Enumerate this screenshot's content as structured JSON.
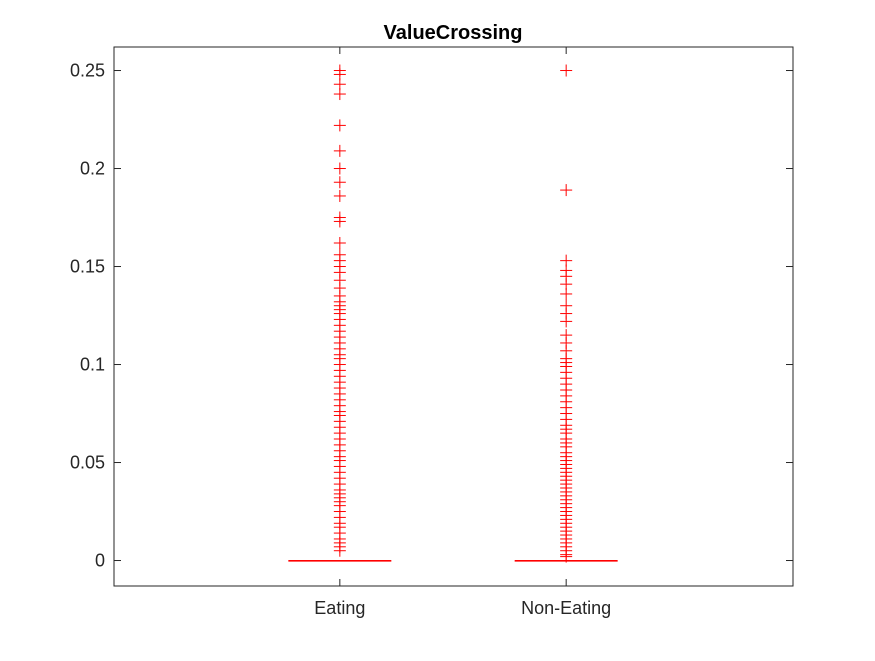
{
  "chart_data": {
    "type": "boxplot",
    "title": "ValueCrossing",
    "xlabel": "",
    "ylabel": "",
    "ylim": [
      -0.013,
      0.262
    ],
    "yticks": [
      0,
      0.05,
      0.1,
      0.15,
      0.2,
      0.25
    ],
    "ytick_labels": [
      "0",
      "0.05",
      "0.1",
      "0.15",
      "0.2",
      "0.25"
    ],
    "categories": [
      "Eating",
      "Non-Eating"
    ],
    "grid": false,
    "legend": "none",
    "box_color": "#ff0000",
    "outlier_color": "#ff0000",
    "series": [
      {
        "category": "Eating",
        "median": 0,
        "q1": 0,
        "q3": 0,
        "whisker_low": 0,
        "whisker_high": 0,
        "outliers": [
          0.25,
          0.248,
          0.243,
          0.238,
          0.222,
          0.209,
          0.2,
          0.193,
          0.186,
          0.175,
          0.173,
          0.162,
          0.156,
          0.153,
          0.15,
          0.147,
          0.143,
          0.139,
          0.135,
          0.132,
          0.13,
          0.128,
          0.126,
          0.123,
          0.12,
          0.117,
          0.114,
          0.111,
          0.108,
          0.105,
          0.103,
          0.1,
          0.097,
          0.094,
          0.091,
          0.088,
          0.085,
          0.082,
          0.079,
          0.076,
          0.074,
          0.071,
          0.068,
          0.065,
          0.062,
          0.059,
          0.056,
          0.053,
          0.051,
          0.048,
          0.045,
          0.042,
          0.039,
          0.036,
          0.034,
          0.032,
          0.03,
          0.028,
          0.025,
          0.022,
          0.019,
          0.017,
          0.014,
          0.011,
          0.009,
          0.007,
          0.005
        ]
      },
      {
        "category": "Non-Eating",
        "median": 0,
        "q1": 0,
        "q3": 0,
        "whisker_low": 0,
        "whisker_high": 0,
        "outliers": [
          0.25,
          0.189,
          0.153,
          0.148,
          0.145,
          0.141,
          0.136,
          0.13,
          0.126,
          0.122,
          0.115,
          0.111,
          0.107,
          0.103,
          0.101,
          0.099,
          0.096,
          0.093,
          0.09,
          0.087,
          0.084,
          0.081,
          0.078,
          0.075,
          0.072,
          0.069,
          0.067,
          0.065,
          0.062,
          0.06,
          0.058,
          0.055,
          0.053,
          0.051,
          0.049,
          0.047,
          0.045,
          0.043,
          0.041,
          0.039,
          0.037,
          0.035,
          0.033,
          0.031,
          0.029,
          0.027,
          0.025,
          0.023,
          0.021,
          0.019,
          0.017,
          0.015,
          0.013,
          0.011,
          0.009,
          0.007,
          0.005,
          0.003,
          0.002
        ]
      }
    ]
  }
}
